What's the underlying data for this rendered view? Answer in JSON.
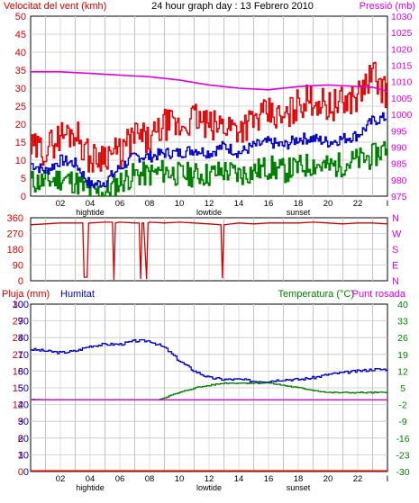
{
  "header": {
    "wind_label": "Velocitat del vent (kmh)",
    "title": "24 hour graph day : 13 Febrero 2010",
    "pressure_label": "Pressió (mb)"
  },
  "lower_header": {
    "rain_label": "Pluja (mm)",
    "humidity_label": "Humitat",
    "temperature_label": "Temperatura (°C)",
    "dewpoint_label": "Punt rosada"
  },
  "colors": {
    "wind_gust": "#e00000",
    "wind_avg": "#0000c0",
    "wind_low": "#008000",
    "pressure": "#e000e0",
    "direction": "#d00000",
    "humidity": "#0000c0",
    "temperature": "#008000",
    "dewpoint": "#e000e0",
    "rain": "#e00000",
    "grid": "#c8c8c8",
    "axis_text_left": "#d00000",
    "axis_text_right": "#e000e0"
  },
  "chart_data": [
    {
      "type": "line",
      "title": "24 hour graph day : 13 Febrero 2010",
      "ylabel": "Velocitat del vent (kmh)",
      "y2label": "Pressió (mb)",
      "x_range": [
        0,
        24
      ],
      "x_ticks": [
        "02",
        "04",
        "06",
        "08",
        "10",
        "12",
        "14",
        "16",
        "18",
        "20",
        "22",
        "I"
      ],
      "x_annotations": [
        "hightide",
        "lowtide",
        "sunset"
      ],
      "ylim": [
        0,
        50
      ],
      "y_ticks": [
        0,
        5,
        10,
        15,
        20,
        25,
        30,
        35,
        40,
        45,
        50
      ],
      "y2lim": [
        975,
        1030
      ],
      "y2_ticks": [
        975,
        980,
        985,
        990,
        995,
        1000,
        1005,
        1010,
        1015,
        1020,
        1025,
        1030
      ],
      "grid": true,
      "series": [
        {
          "name": "Pressió (mb)",
          "axis": "right",
          "x": [
            0,
            2,
            4,
            6,
            8,
            10,
            12,
            14,
            16,
            18,
            20,
            22,
            23,
            24
          ],
          "values": [
            1013,
            1013,
            1012.5,
            1012,
            1011.5,
            1010.5,
            1009,
            1008,
            1007.5,
            1008.5,
            1009,
            1008.5,
            1008.3,
            1007
          ]
        },
        {
          "name": "Velocitat del vent (kmh)",
          "axis": "left",
          "x": [
            0,
            1,
            2,
            3,
            4,
            5,
            6,
            7,
            8,
            9,
            10,
            11,
            12,
            13,
            14,
            15,
            16,
            17,
            18,
            19,
            20,
            21,
            22,
            23,
            24
          ],
          "values": [
            13,
            13,
            17,
            18,
            10,
            12,
            12,
            17,
            15,
            20,
            19,
            22,
            19,
            20,
            19,
            21,
            23,
            21,
            26,
            27,
            25,
            26,
            28,
            34,
            28
          ]
        },
        {
          "name": "avg",
          "axis": "left",
          "x": [
            0,
            1,
            2,
            3,
            4,
            5,
            6,
            7,
            8,
            9,
            10,
            11,
            12,
            13,
            14,
            15,
            16,
            17,
            18,
            19,
            20,
            21,
            22,
            23,
            24
          ],
          "values": [
            9,
            7,
            10,
            9,
            3,
            4,
            8,
            11,
            11,
            12,
            12,
            13,
            12,
            14,
            12,
            14,
            15,
            14,
            16,
            16,
            15,
            16,
            17,
            21,
            22
          ]
        },
        {
          "name": "low",
          "axis": "left",
          "x": [
            0,
            1,
            2,
            3,
            4,
            5,
            6,
            7,
            8,
            9,
            10,
            11,
            12,
            13,
            14,
            15,
            16,
            17,
            18,
            19,
            20,
            21,
            22,
            23,
            24
          ],
          "values": [
            4,
            4,
            5,
            4,
            1,
            1,
            4,
            6,
            6,
            7,
            6,
            6,
            6,
            7,
            6,
            7,
            8,
            7,
            8,
            9,
            8,
            9,
            10,
            11,
            14
          ]
        }
      ]
    },
    {
      "type": "line",
      "ylabel": "",
      "x_range": [
        0,
        24
      ],
      "ylim": [
        0,
        360
      ],
      "y_ticks": [
        0,
        90,
        180,
        270,
        360
      ],
      "y2_tick_labels": [
        "N",
        "W",
        "S",
        "E",
        "N"
      ],
      "grid": true,
      "series": [
        {
          "name": "direction",
          "x": [
            0,
            1,
            2,
            3,
            3.5,
            3.6,
            3.8,
            3.9,
            4,
            5,
            5.5,
            5.6,
            5.7,
            6,
            7,
            7.3,
            7.4,
            7.5,
            7.6,
            7.8,
            7.9,
            8,
            9,
            10,
            11,
            12,
            12.8,
            12.9,
            13,
            14,
            15,
            16,
            17,
            18,
            19,
            20,
            21,
            22,
            23,
            24
          ],
          "values": [
            320,
            325,
            330,
            330,
            330,
            20,
            20,
            330,
            330,
            335,
            335,
            5,
            330,
            335,
            330,
            330,
            10,
            330,
            330,
            10,
            330,
            335,
            330,
            335,
            330,
            325,
            320,
            15,
            320,
            330,
            325,
            330,
            330,
            330,
            335,
            330,
            325,
            330,
            330,
            325
          ]
        }
      ]
    },
    {
      "type": "line",
      "ylabel": "Pluja (mm)",
      "y2label": "Temperatura (°C)",
      "x_range": [
        0,
        24
      ],
      "x_ticks": [
        "02",
        "04",
        "06",
        "08",
        "10",
        "12",
        "14",
        "16",
        "18",
        "20",
        "22",
        "I"
      ],
      "x_annotations": [
        "hightide",
        "lowtide",
        "sunset"
      ],
      "ylim_rain": [
        0,
        30
      ],
      "rain_ticks": [
        0,
        3,
        6,
        9,
        12,
        15,
        18,
        21,
        24,
        27,
        30
      ],
      "ylim_humidity": [
        0,
        100
      ],
      "humidity_ticks": [
        0,
        10,
        20,
        30,
        40,
        50,
        60,
        70,
        80,
        90,
        100
      ],
      "ylim_temperature": [
        -30,
        40
      ],
      "temperature_ticks": [
        -30,
        -23,
        -16,
        -9,
        -2,
        5,
        12,
        19,
        26,
        33,
        40
      ],
      "grid": true,
      "series": [
        {
          "name": "Humitat",
          "axis": "humidity",
          "x": [
            0,
            1,
            2,
            3,
            4,
            5,
            6,
            7,
            8,
            9,
            10,
            11,
            12,
            13,
            14,
            15,
            16,
            17,
            18,
            19,
            20,
            21,
            22,
            23,
            24
          ],
          "values": [
            73,
            72,
            71,
            72,
            75,
            76,
            76,
            78,
            78,
            74,
            66,
            60,
            56,
            55,
            55,
            54,
            54,
            55,
            55,
            56,
            58,
            59,
            60,
            61,
            61
          ]
        },
        {
          "name": "Temperatura (°C)",
          "axis": "temperature",
          "x": [
            0,
            1,
            2,
            3,
            4,
            5,
            6,
            7,
            8,
            9,
            10,
            11,
            12,
            13,
            14,
            15,
            16,
            17,
            18,
            19,
            20,
            21,
            22,
            23,
            24
          ],
          "values": [
            0,
            0,
            -1,
            -1,
            -2,
            -2,
            -2,
            -1,
            -1,
            1,
            3,
            5,
            6,
            7,
            7,
            7,
            7,
            6,
            5,
            4,
            3,
            3,
            3,
            3,
            3
          ]
        },
        {
          "name": "Punt rosada",
          "axis": "temperature",
          "x": [
            0,
            1,
            2,
            3,
            4,
            5,
            6,
            7,
            8,
            9,
            10,
            11,
            12,
            13,
            14,
            15,
            16,
            17,
            18,
            19,
            20,
            21,
            22,
            23,
            24
          ],
          "values": [
            -5,
            -5,
            -5,
            -6,
            -7,
            -6,
            -6,
            -6,
            -6,
            -5,
            -5,
            -4,
            -4,
            -4,
            -4,
            -4,
            -4,
            -4,
            -4,
            -4,
            -4,
            -4,
            -4,
            -4,
            -4
          ]
        },
        {
          "name": "Pluja (mm)",
          "axis": "rain",
          "x": [
            0,
            24
          ],
          "values": [
            0,
            0
          ]
        }
      ]
    }
  ]
}
